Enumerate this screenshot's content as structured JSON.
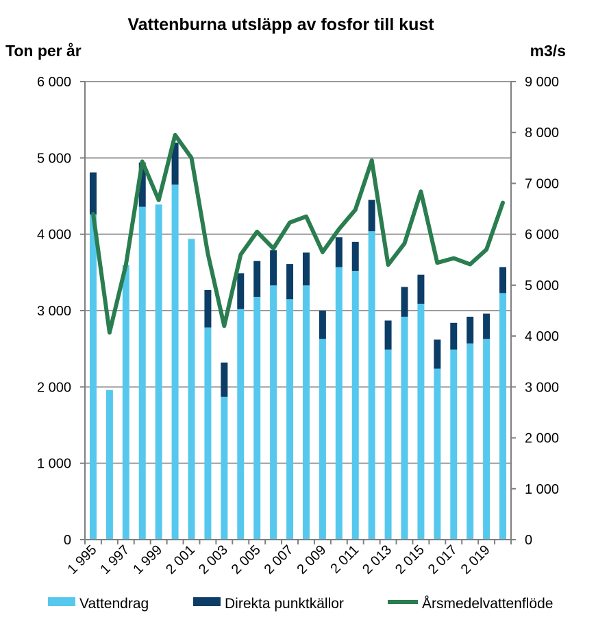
{
  "chart_data": {
    "type": "bar",
    "title": "Vattenburna utsläpp av fosfor till kust",
    "ylabel_left": "Ton per år",
    "ylabel_right": "m3/s",
    "ylim_left": [
      0,
      6000
    ],
    "ylim_right": [
      0,
      9000
    ],
    "yticks_left": [
      "0",
      "1 000",
      "2 000",
      "3 000",
      "4 000",
      "5 000",
      "6 000"
    ],
    "yticks_right": [
      "0",
      "1 000",
      "2 000",
      "3 000",
      "4 000",
      "5 000",
      "6 000",
      "7 000",
      "8 000",
      "9 000"
    ],
    "categories": [
      "1995",
      "1996",
      "1997",
      "1998",
      "1999",
      "2000",
      "2001",
      "2002",
      "2003",
      "2004",
      "2005",
      "2006",
      "2007",
      "2008",
      "2009",
      "2010",
      "2011",
      "2012",
      "2013",
      "2014",
      "2015",
      "2016",
      "2017",
      "2018",
      "2019",
      "2020"
    ],
    "xtick_labels": [
      "1 995",
      "1 997",
      "1 999",
      "2 001",
      "2 003",
      "2 005",
      "2 007",
      "2 009",
      "2 011",
      "2 013",
      "2 015",
      "2 017",
      "2 019"
    ],
    "grid": true,
    "legend_position": "bottom",
    "series": [
      {
        "name": "Vattendrag",
        "type": "bar",
        "stack": "total",
        "axis": "left",
        "color": "#56c8ee",
        "values": [
          4260,
          1960,
          3600,
          4360,
          4390,
          4650,
          3940,
          2780,
          1870,
          3020,
          3180,
          3330,
          3150,
          3330,
          2630,
          3570,
          3520,
          4040,
          2490,
          2920,
          3090,
          2240,
          2490,
          2570,
          2630,
          3230
        ]
      },
      {
        "name": "Direkta punktkällor",
        "type": "bar",
        "stack": "total",
        "axis": "left",
        "color": "#0c3d66",
        "values": [
          550,
          0,
          0,
          580,
          0,
          550,
          0,
          490,
          450,
          470,
          470,
          460,
          460,
          430,
          370,
          390,
          380,
          410,
          380,
          390,
          380,
          380,
          350,
          350,
          330,
          340
        ]
      },
      {
        "name": "Årsmedelvattenflöde",
        "type": "line",
        "axis": "right",
        "color": "#2a7d4f",
        "values": [
          6400,
          4070,
          5400,
          7430,
          6670,
          7950,
          7500,
          5620,
          4200,
          5600,
          6050,
          5720,
          6230,
          6350,
          5650,
          6100,
          6480,
          7450,
          5400,
          5820,
          6840,
          5440,
          5530,
          5410,
          5700,
          6620
        ]
      }
    ]
  }
}
